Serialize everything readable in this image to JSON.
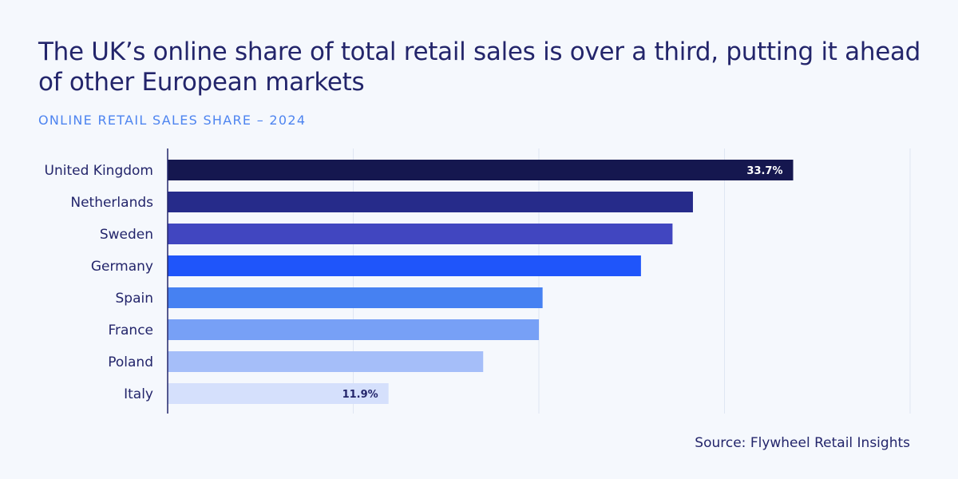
{
  "header": {
    "title": "The UK’s online share of total retail sales is over a third, putting it ahead of other European markets",
    "subtitle": "ONLINE RETAIL SALES SHARE – 2024"
  },
  "footer": {
    "source": "Source: Flywheel Retail Insights"
  },
  "chart_data": {
    "type": "bar",
    "orientation": "horizontal",
    "title": "The UK’s online share of total retail sales is over a third, putting it ahead of other European markets",
    "subtitle": "ONLINE RETAIL SALES SHARE – 2024",
    "xlabel": "",
    "ylabel": "",
    "xlim": [
      0,
      40
    ],
    "grid": true,
    "gridlines": [
      0,
      10,
      20,
      30,
      40
    ],
    "categories": [
      "United Kingdom",
      "Netherlands",
      "Sweden",
      "Germany",
      "Spain",
      "France",
      "Poland",
      "Italy"
    ],
    "values": [
      33.7,
      28.3,
      27.2,
      25.5,
      20.2,
      20.0,
      17.0,
      11.9
    ],
    "colors": [
      "#15174f",
      "#262b8a",
      "#4146c0",
      "#1f55fa",
      "#4681f2",
      "#77a0f6",
      "#a5bef9",
      "#d5e0fc"
    ],
    "data_labels": [
      "33.7%",
      "",
      "",
      "",
      "",
      "",
      "",
      "11.9%"
    ],
    "label_colors": [
      "#ffffff",
      "#ffffff",
      "#ffffff",
      "#ffffff",
      "#ffffff",
      "#ffffff",
      "#23256b",
      "#23256b"
    ]
  }
}
